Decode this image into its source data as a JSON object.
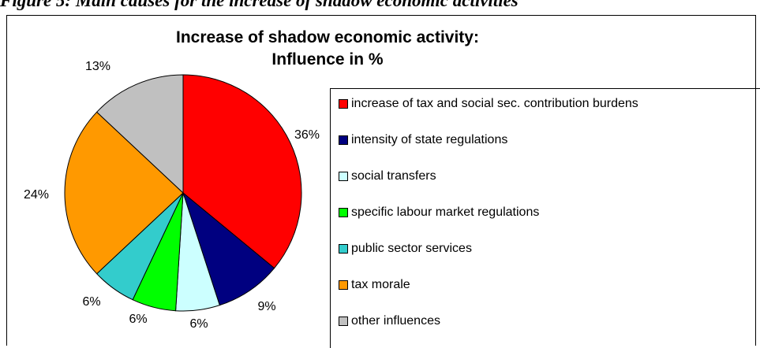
{
  "caption": "Figure 5: Main causes for the increase of shadow economic activities",
  "chart_data": {
    "type": "pie",
    "title_line1": "Increase of shadow economic activity:",
    "title_line2": "Influence in %",
    "slices": [
      {
        "label": "increase of tax and social sec. contribution burdens",
        "value": 36,
        "pct_label": "36%",
        "color": "#ff0000"
      },
      {
        "label": "intensity of state regulations",
        "value": 9,
        "pct_label": "9%",
        "color": "#000080"
      },
      {
        "label": "social transfers",
        "value": 6,
        "pct_label": "6%",
        "color": "#ccffff"
      },
      {
        "label": "specific labour market regulations",
        "value": 6,
        "pct_label": "6%",
        "color": "#00ff00"
      },
      {
        "label": "public sector services",
        "value": 6,
        "pct_label": "6%",
        "color": "#33cccc"
      },
      {
        "label": "tax morale",
        "value": 24,
        "pct_label": "24%",
        "color": "#ff9900"
      },
      {
        "label": "other influences",
        "value": 13,
        "pct_label": "13%",
        "color": "#c0c0c0"
      }
    ],
    "legend_position": "right"
  }
}
